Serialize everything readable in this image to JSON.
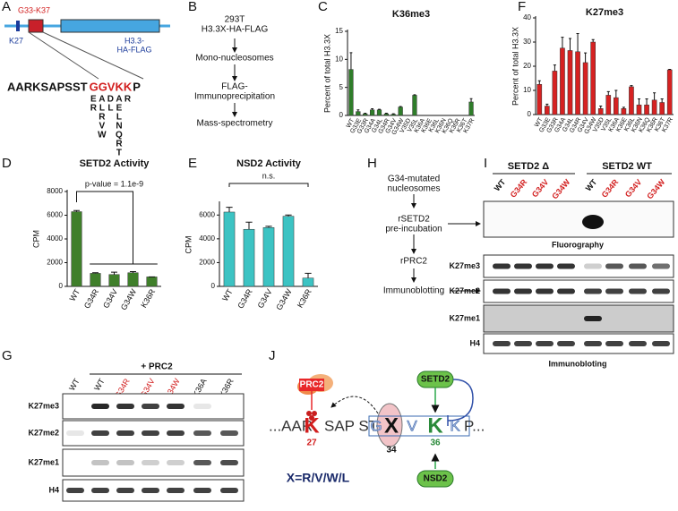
{
  "panel_letters": [
    "A",
    "B",
    "C",
    "D",
    "E",
    "F",
    "G",
    "H",
    "I",
    "J"
  ],
  "panel_a": {
    "region_label": "G33-K37",
    "k27_label": "K27",
    "construct_lines": [
      "H3.3-",
      "HA-FLAG"
    ],
    "sequence_prefix": "AARKSAPSST",
    "sequence_mutated": "GGVKK",
    "sequence_suffix": "P",
    "substitutions": [
      [
        "E",
        "R"
      ],
      [
        "A",
        "L",
        "R",
        "V",
        "W"
      ],
      [
        "D",
        "L"
      ],
      [
        "A",
        "E",
        "L",
        "N",
        "Q",
        "R",
        "T"
      ],
      [
        "R"
      ]
    ]
  },
  "panel_b": {
    "steps": [
      [
        "293T",
        "H3.3X-HA-FLAG"
      ],
      [
        "Mono-nucleosomes"
      ],
      [
        "FLAG-",
        "Immunoprecipitation"
      ],
      [
        "Mass-spectrometry"
      ]
    ]
  },
  "panel_h": {
    "steps": [
      [
        "G34-mutated",
        "nucleosomes"
      ],
      [
        "rSETD2",
        "pre-incubation"
      ],
      [
        "rPRC2"
      ],
      [
        "Immunoblotting"
      ]
    ]
  },
  "panel_g": {
    "treatment": "+ PRC2",
    "lanes": [
      "WT",
      "WT",
      "G34R",
      "G34V",
      "G34W",
      "K36A",
      "K36R"
    ],
    "rows": [
      "K27me3",
      "K27me2",
      "K27me1",
      "H4"
    ]
  },
  "panel_i": {
    "groups": [
      "SETD2 Δ",
      "SETD2 WT"
    ],
    "lanes": [
      "WT",
      "G34R",
      "G34V",
      "G34W",
      "WT",
      "G34R",
      "G34V",
      "G34W"
    ],
    "fluorography": "Fluorography",
    "rows": [
      "K27me3",
      "K27me2",
      "K27me1",
      "H4"
    ],
    "immunoblot": "Immunobloting"
  },
  "panel_j": {
    "prc2": "PRC2",
    "setd2": "SETD2",
    "nsd2": "NSD2",
    "seq_start": "...AAR",
    "k27": "K",
    "seq_mid": "SAP ST",
    "g": "G",
    "x": "X",
    "v": "V",
    "k36": "K",
    "k37": "K",
    "p": "P...",
    "pos27": "27",
    "pos34": "34",
    "pos36": "36",
    "legend": "X=R/V/W/L"
  },
  "chart_data": [
    {
      "type": "bar",
      "title": "K36me3",
      "y_label": "Percent of total H3.3X",
      "color": "#2f7d2a",
      "categories": [
        "WT",
        "G33E",
        "G33R",
        "G34A",
        "G34L",
        "G34R",
        "G34V",
        "G34W",
        "V35D",
        "V35L",
        "K36A",
        "K36E",
        "K36L",
        "K36N",
        "K36Q",
        "K36R",
        "K36T",
        "K37R"
      ],
      "values": [
        8.2,
        0.7,
        0.3,
        1.0,
        1.0,
        0.3,
        0.2,
        1.5,
        0,
        3.6,
        0,
        0,
        0,
        0,
        0,
        0,
        0,
        2.4
      ],
      "errors": [
        3,
        0.3,
        0.1,
        0.2,
        0.1,
        0.1,
        0.1,
        0.1,
        0,
        0.1,
        0,
        0,
        0,
        0,
        0,
        0,
        0,
        0.6
      ],
      "ylim": [
        0,
        15
      ],
      "yticks": [
        0,
        5,
        10,
        15
      ]
    },
    {
      "type": "bar",
      "title": "SETD2 Activity",
      "y_label": "CPM",
      "color": "#3f7f2a",
      "annotation": "p-value = 1.1e-9",
      "categories": [
        "WT",
        "G34R",
        "G34V",
        "G34W",
        "K36R"
      ],
      "values": [
        6300,
        1100,
        1000,
        1150,
        800
      ],
      "errors": [
        100,
        50,
        200,
        100,
        0
      ],
      "ylim": [
        0,
        8000
      ],
      "yticks": [
        0,
        2000,
        4000,
        6000,
        8000
      ]
    },
    {
      "type": "bar",
      "title": "NSD2 Activity",
      "y_label": "CPM",
      "color": "#3cc3c3",
      "annotation": "n.s.",
      "categories": [
        "WT",
        "G34R",
        "G34V",
        "G34W",
        "K36R"
      ],
      "values": [
        6250,
        4800,
        4950,
        5900,
        700
      ],
      "errors": [
        400,
        600,
        100,
        100,
        400
      ],
      "ylim": [
        0,
        7000
      ],
      "yticks": [
        0,
        2000,
        4000,
        6000
      ]
    },
    {
      "type": "bar",
      "title": "K27me3",
      "y_label": "Percent of total H3.3X",
      "color": "#d62222",
      "categories": [
        "WT",
        "G33E",
        "G33R",
        "G34A",
        "G34L",
        "G34R",
        "G34V",
        "G34W",
        "V35D",
        "V35L",
        "K36A",
        "K36E",
        "K36L",
        "K36N",
        "K36Q",
        "K36R",
        "K36T",
        "K37R"
      ],
      "values": [
        12.5,
        3.5,
        18,
        27.5,
        26.5,
        26,
        21.5,
        30,
        2.5,
        8,
        7,
        2.5,
        11.5,
        4,
        4,
        6,
        5,
        18.5
      ],
      "errors": [
        1.5,
        0.8,
        2.5,
        4.5,
        5,
        7.5,
        4,
        1,
        1,
        1.5,
        3,
        0.5,
        0.5,
        2.5,
        2.5,
        3,
        1.5,
        0.2
      ],
      "ylim": [
        0,
        40
      ],
      "yticks": [
        0,
        10,
        20,
        30,
        40
      ]
    }
  ]
}
